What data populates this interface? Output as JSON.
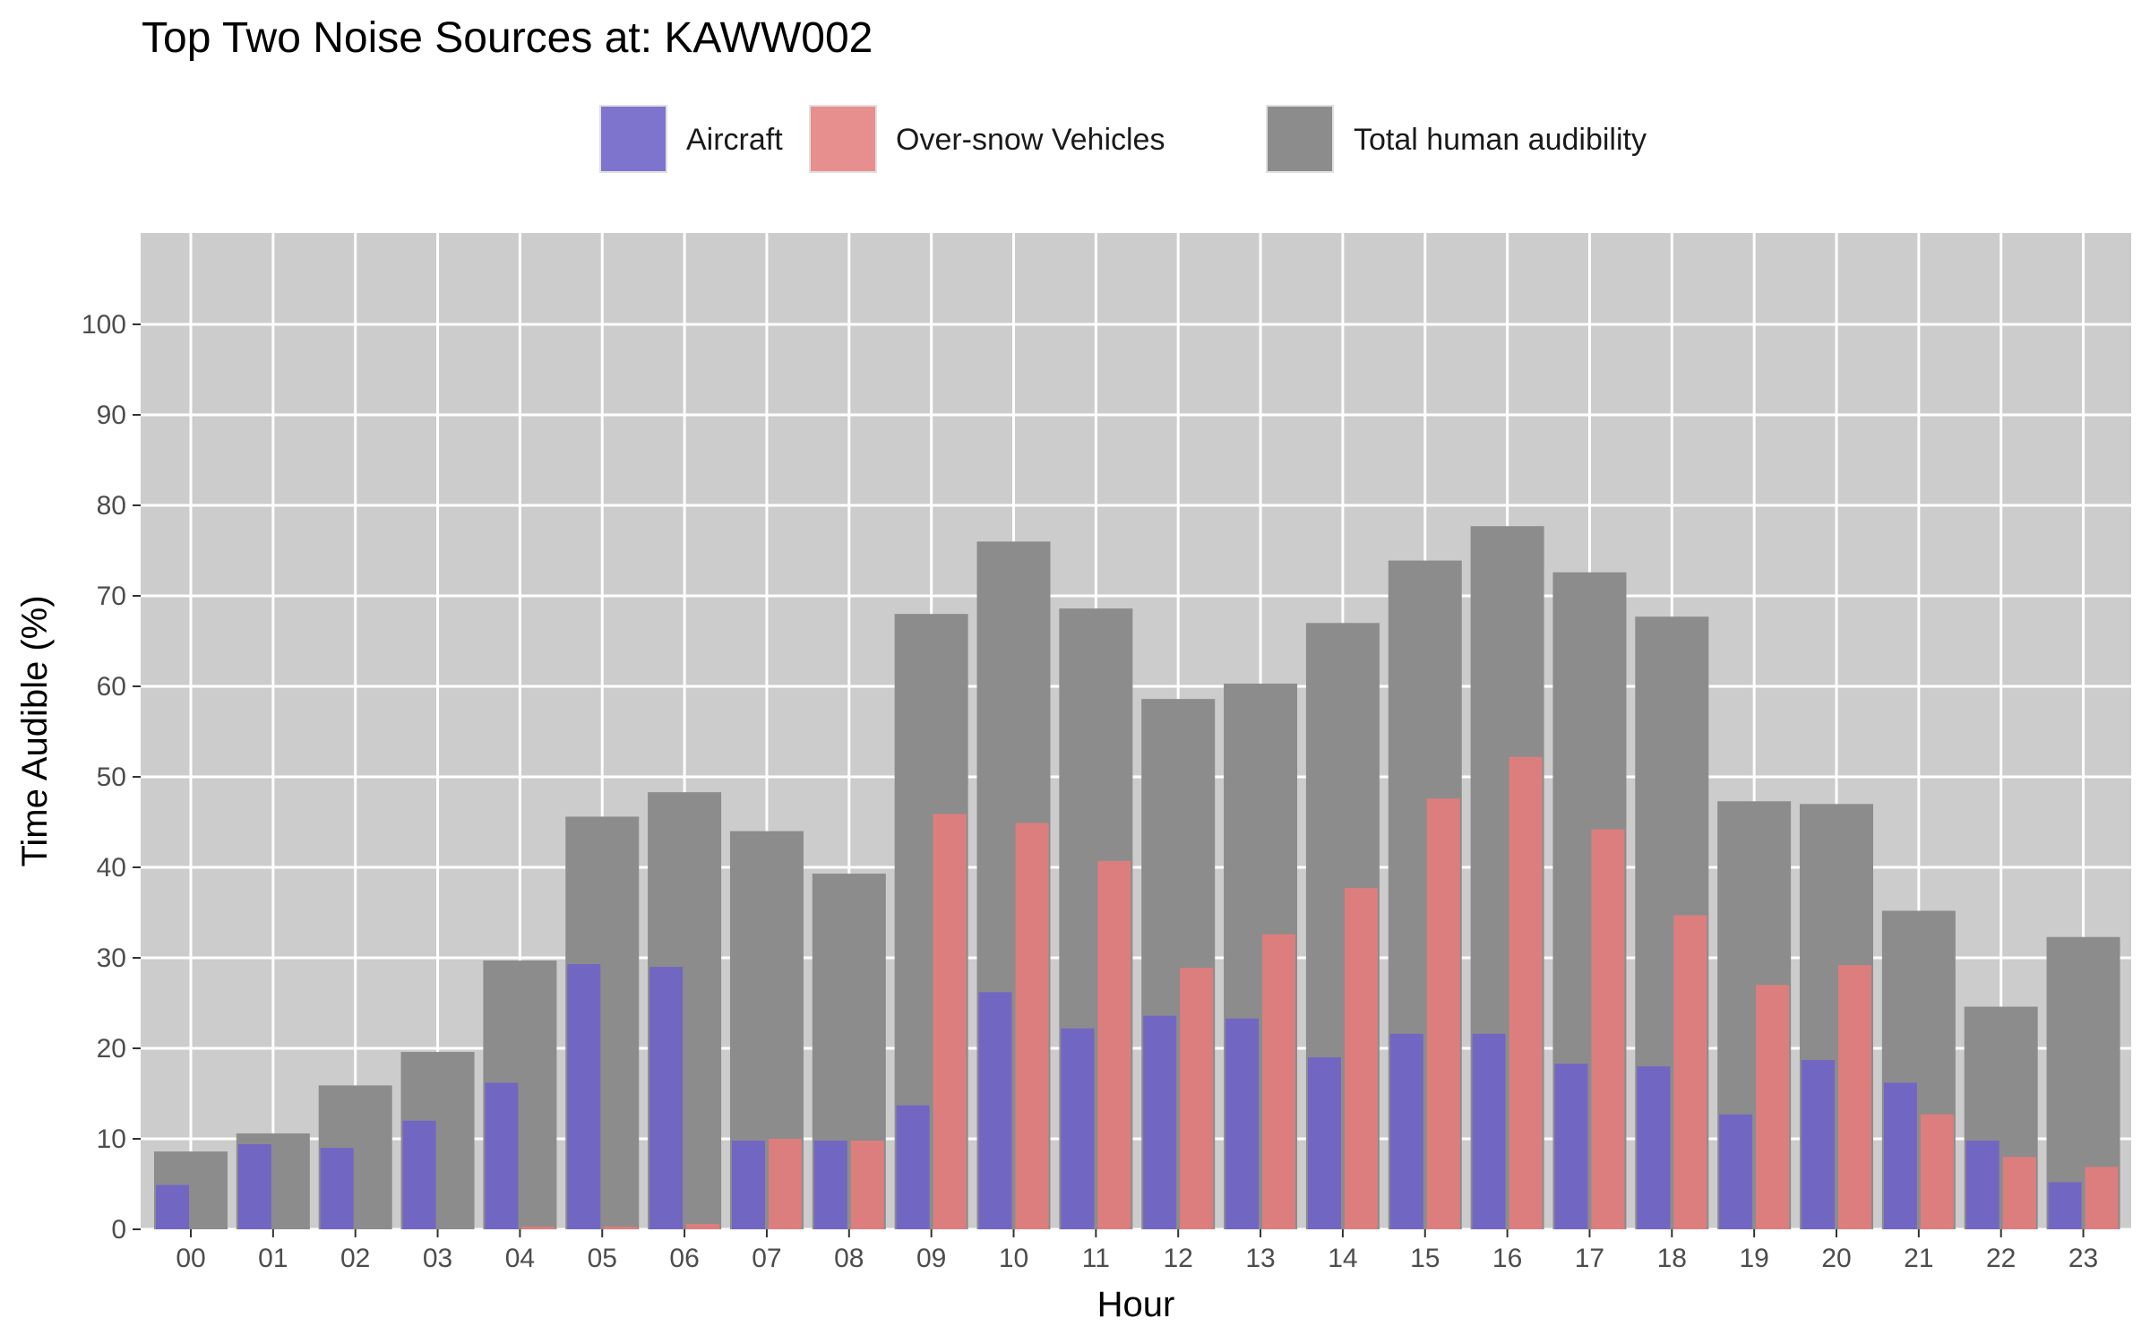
{
  "chart_data": {
    "type": "bar",
    "title": "Top Two Noise Sources at: KAWW002",
    "xlabel": "Hour",
    "ylabel": "Time Audible (%)",
    "ylim": [
      0,
      110
    ],
    "yticks": [
      0,
      10,
      20,
      30,
      40,
      50,
      60,
      70,
      80,
      90,
      100
    ],
    "grid": true,
    "legend_position": "top",
    "categories": [
      "00",
      "01",
      "02",
      "03",
      "04",
      "05",
      "06",
      "07",
      "08",
      "09",
      "10",
      "11",
      "12",
      "13",
      "14",
      "15",
      "16",
      "17",
      "18",
      "19",
      "20",
      "21",
      "22",
      "23"
    ],
    "series": [
      {
        "name": "Total human audibility",
        "color": "#8c8c8c",
        "values": [
          8.6,
          10.6,
          15.9,
          19.6,
          29.7,
          45.6,
          48.3,
          44.0,
          39.3,
          68.0,
          76.0,
          68.6,
          58.6,
          60.3,
          67.0,
          73.9,
          77.7,
          72.6,
          67.7,
          47.3,
          47.0,
          35.2,
          24.6,
          32.3
        ]
      },
      {
        "name": "Aircraft",
        "color": "#7266c3",
        "values": [
          4.9,
          9.4,
          9.0,
          12.0,
          16.2,
          29.3,
          29.0,
          9.8,
          9.8,
          13.7,
          26.2,
          22.2,
          23.6,
          23.3,
          19.0,
          21.6,
          21.6,
          18.3,
          18.0,
          12.7,
          18.7,
          16.2,
          9.8,
          5.2
        ]
      },
      {
        "name": "Over-snow Vehicles",
        "color": "#dd7e7e",
        "values": [
          0,
          0,
          0,
          0,
          0.3,
          0.3,
          0.6,
          10.0,
          9.8,
          45.9,
          44.9,
          40.7,
          28.9,
          32.6,
          37.7,
          47.6,
          52.2,
          44.2,
          34.7,
          27.0,
          29.2,
          12.7,
          8.0,
          6.9
        ]
      }
    ],
    "legend": [
      {
        "name": "Aircraft",
        "color": "#7e73cd"
      },
      {
        "name": "Over-snow Vehicles",
        "color": "#e78f8f"
      },
      {
        "name": "Total human audibility",
        "color": "#8c8c8c"
      }
    ]
  }
}
